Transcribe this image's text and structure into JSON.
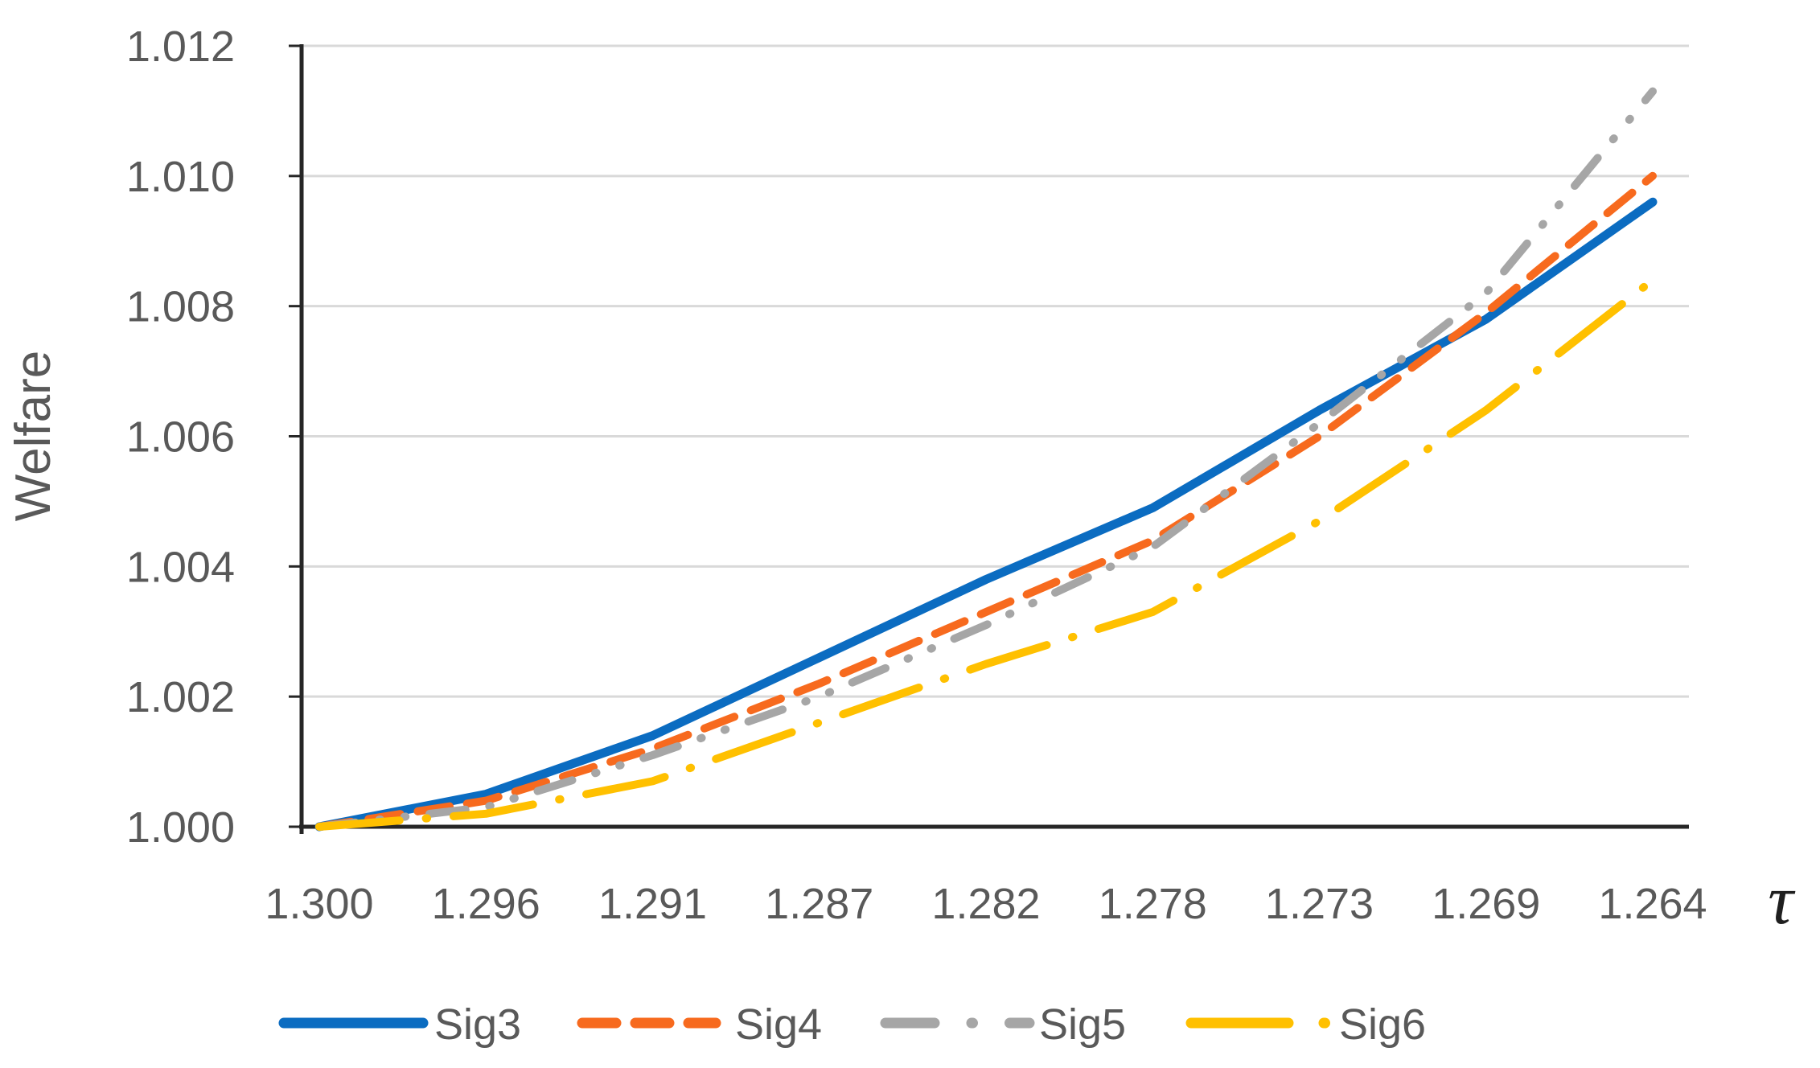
{
  "chart_data": {
    "type": "line",
    "title": "",
    "ylabel": "Welfare",
    "xlabel": "τ",
    "categories": [
      "1.300",
      "1.296",
      "1.291",
      "1.287",
      "1.282",
      "1.278",
      "1.273",
      "1.269",
      "1.264"
    ],
    "series": [
      {
        "name": "Sig3",
        "color": "#0B6CC1",
        "style": "solid",
        "values": [
          1.0,
          1.0005,
          1.0014,
          1.0026,
          1.0038,
          1.0049,
          1.0064,
          1.0078,
          1.0096
        ]
      },
      {
        "name": "Sig4",
        "color": "#F76A1E",
        "style": "dash",
        "values": [
          1.0,
          1.0004,
          1.0012,
          1.0022,
          1.0033,
          1.0044,
          1.006,
          1.0079,
          1.01
        ]
      },
      {
        "name": "Sig5",
        "color": "#A6A6A6",
        "style": "long-dash-dot-dot",
        "values": [
          1.0,
          1.0003,
          1.0011,
          1.002,
          1.0031,
          1.0043,
          1.0062,
          1.0082,
          1.0113
        ]
      },
      {
        "name": "Sig6",
        "color": "#FFC000",
        "style": "long-dash-dot",
        "values": [
          1.0,
          1.0002,
          1.0007,
          1.0016,
          1.0025,
          1.0033,
          1.0047,
          1.0064,
          1.0084
        ]
      }
    ],
    "ylim": [
      1.0,
      1.012
    ],
    "ytick_step": 0.002,
    "ytick_labels": [
      "1.000",
      "1.002",
      "1.004",
      "1.006",
      "1.008",
      "1.010",
      "1.012"
    ],
    "grid": "horizontal",
    "legend_position": "bottom",
    "axis_color": "#262626",
    "grid_color": "#D9D9D9",
    "label_color": "#595959"
  }
}
